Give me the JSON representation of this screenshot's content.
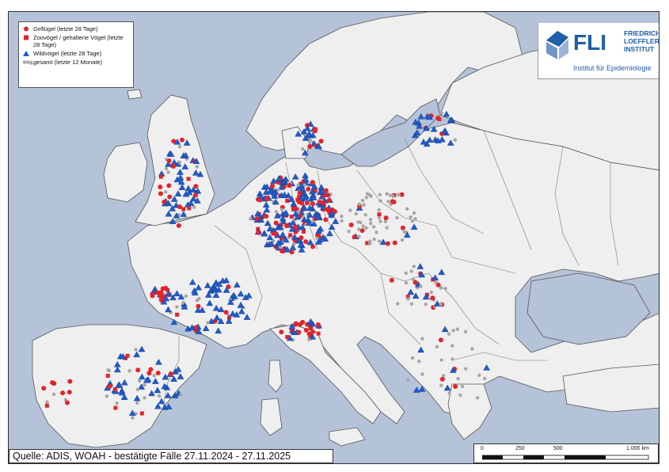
{
  "legend": {
    "items": [
      {
        "symbol": "red-circle",
        "label": "Geflügel (letzte 28 Tage)"
      },
      {
        "symbol": "red-square",
        "label": "Zoovögel / gehaltene Vögel (letzte 28 Tage)"
      },
      {
        "symbol": "blue-triangle",
        "label": "Wildvögel (letzte 28 Tage)"
      },
      {
        "symbol": "grey-symbols",
        "label": "gesamt (letzte 12 Monate)"
      }
    ]
  },
  "logo": {
    "abbr": "FLI",
    "name": "FRIEDRICH LOEFFLER INSTITUT",
    "subtitle": "Institut für Epidemiologie"
  },
  "source": "Quelle: ADIS, WOAH - bestätigte Fälle 27.11.2024 - 27.11.2025",
  "scale": {
    "labels": [
      "0",
      "250",
      "500",
      "1.000 km"
    ]
  },
  "colors": {
    "sea": "#b5c3d9",
    "land": "#efefef",
    "border": "#555555",
    "poultry": "#e3242b",
    "wild": "#1f5ccc",
    "total": "#a6a6a6",
    "brand": "#1f5ea8"
  }
}
